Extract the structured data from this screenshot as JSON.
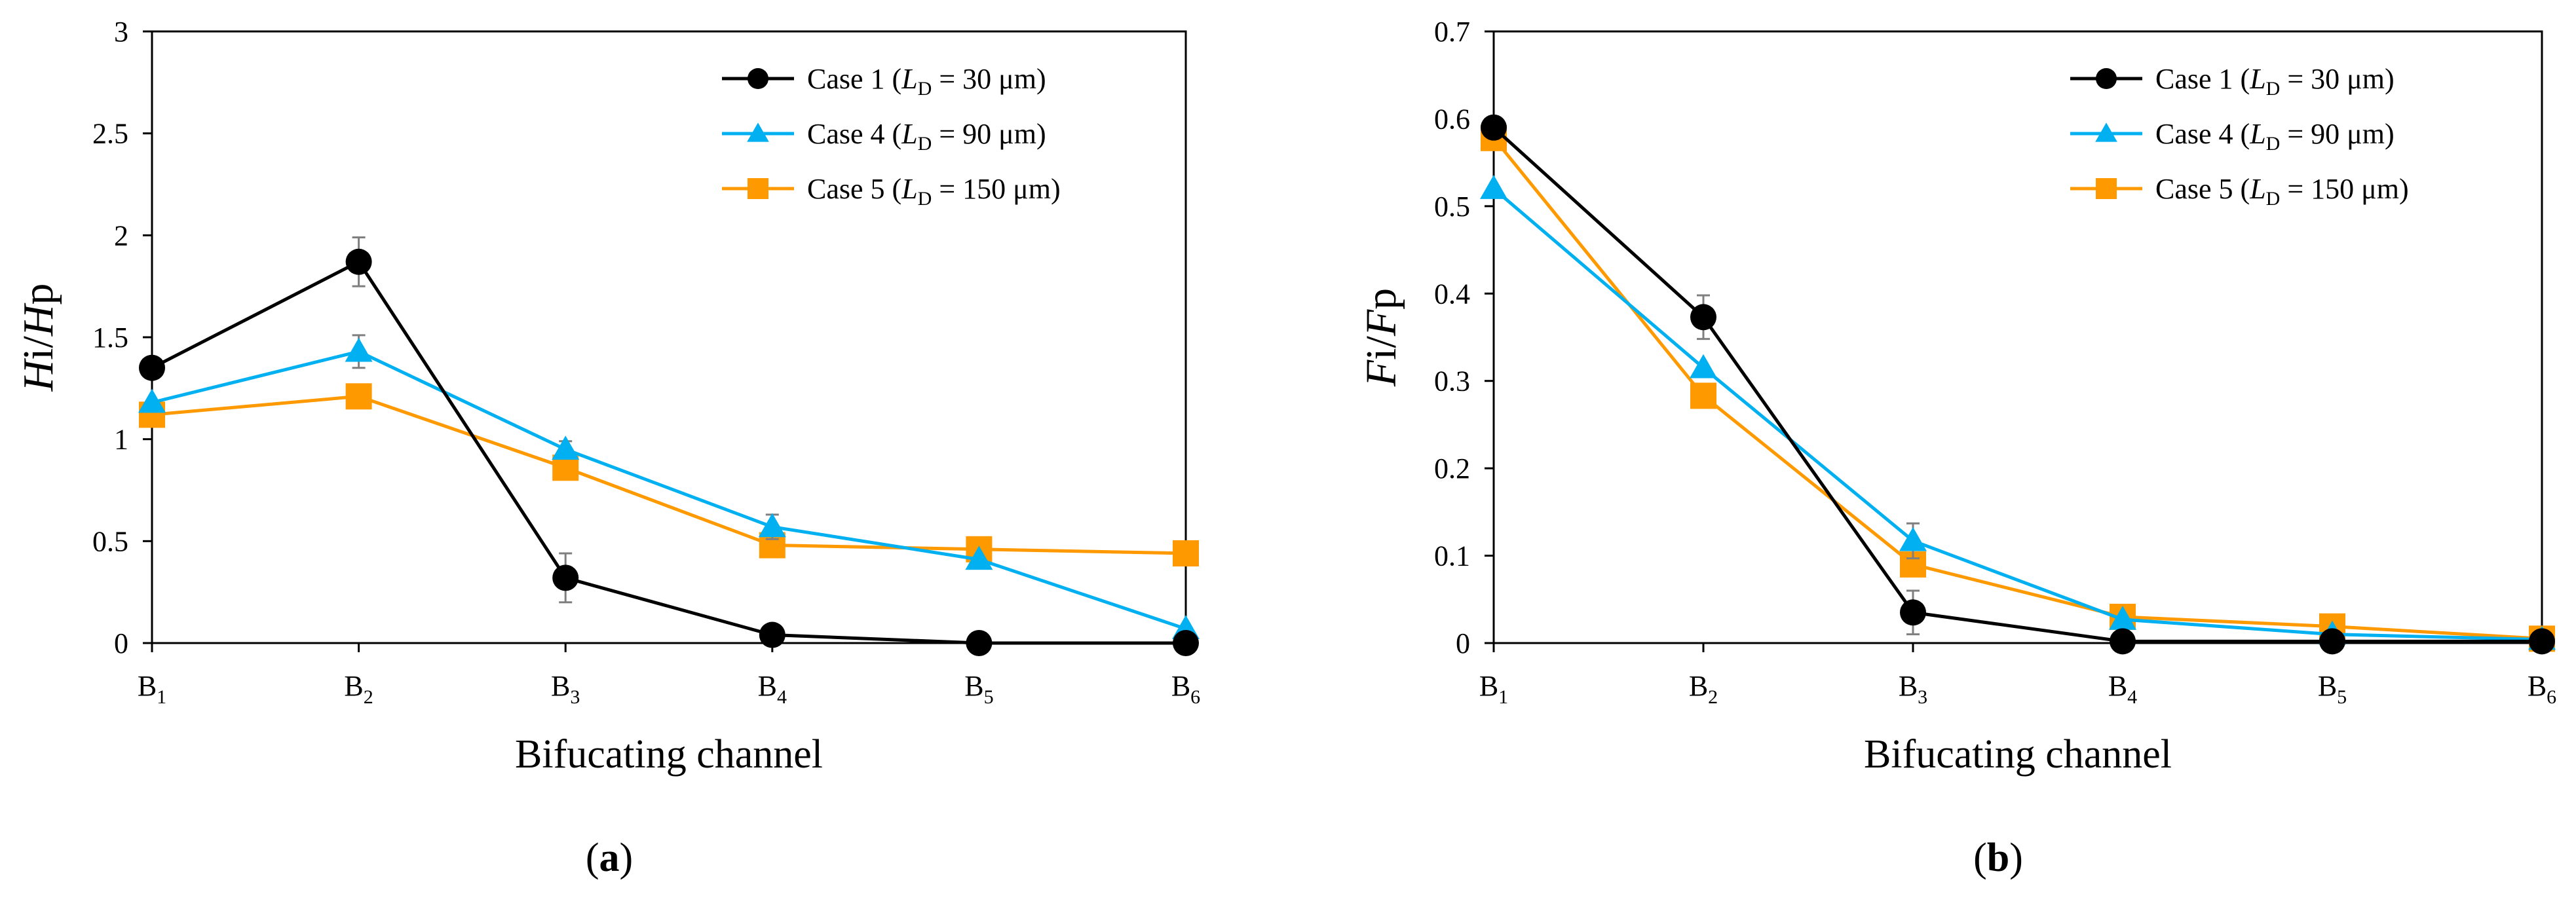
{
  "chart_data": [
    {
      "type": "line",
      "panel_label": "(a)",
      "panel_letter": "a",
      "ylabel_italic": "H",
      "ylabel_sub": "i",
      "ylabel_slash": "/",
      "ylabel_italic2": "H",
      "ylabel_sub2": "p",
      "xlabel": "Bifucating channel",
      "ylim": [
        0,
        3
      ],
      "yticks": [
        0,
        0.5,
        1,
        1.5,
        2,
        2.5,
        3
      ],
      "ytick_labels": [
        "0",
        "0.5",
        "1",
        "1.5",
        "2",
        "2.5",
        "3"
      ],
      "categories": [
        {
          "base": "B",
          "sub": "1"
        },
        {
          "base": "B",
          "sub": "2"
        },
        {
          "base": "B",
          "sub": "3"
        },
        {
          "base": "B",
          "sub": "4"
        },
        {
          "base": "B",
          "sub": "5"
        },
        {
          "base": "B",
          "sub": "6"
        }
      ],
      "legend_position": "top-right",
      "series": [
        {
          "name": "Case 1",
          "ld": "30 μm",
          "color": "#000000",
          "marker": "circle",
          "values": [
            1.35,
            1.87,
            0.32,
            0.04,
            0.0,
            0.0
          ],
          "errors": [
            0.0,
            0.12,
            0.12,
            0.0,
            0.0,
            0.0
          ]
        },
        {
          "name": "Case 4",
          "ld": "90 μm",
          "color": "#00b0f0",
          "marker": "triangle",
          "values": [
            1.18,
            1.43,
            0.95,
            0.57,
            0.41,
            0.07
          ],
          "errors": [
            0.0,
            0.08,
            0.04,
            0.06,
            0.0,
            0.0
          ]
        },
        {
          "name": "Case 5",
          "ld": "150 μm",
          "color": "#ff9900",
          "marker": "square",
          "values": [
            1.12,
            1.21,
            0.86,
            0.48,
            0.46,
            0.44
          ],
          "errors": [
            0.0,
            0.0,
            0.0,
            0.0,
            0.0,
            0.0
          ]
        }
      ]
    },
    {
      "type": "line",
      "panel_label": "(b)",
      "panel_letter": "b",
      "ylabel_italic": "F",
      "ylabel_sub": "i",
      "ylabel_slash": "/",
      "ylabel_italic2": "F",
      "ylabel_sub2": "p",
      "xlabel": "Bifucating channel",
      "ylim": [
        0,
        0.7
      ],
      "yticks": [
        0,
        0.1,
        0.2,
        0.3,
        0.4,
        0.5,
        0.6,
        0.7
      ],
      "ytick_labels": [
        "0",
        "0.1",
        "0.2",
        "0.3",
        "0.4",
        "0.5",
        "0.6",
        "0.7"
      ],
      "categories": [
        {
          "base": "B",
          "sub": "1"
        },
        {
          "base": "B",
          "sub": "2"
        },
        {
          "base": "B",
          "sub": "3"
        },
        {
          "base": "B",
          "sub": "4"
        },
        {
          "base": "B",
          "sub": "5"
        },
        {
          "base": "B",
          "sub": "6"
        }
      ],
      "legend_position": "top-right",
      "series": [
        {
          "name": "Case 1",
          "ld": "30 μm",
          "color": "#000000",
          "marker": "circle",
          "values": [
            0.59,
            0.373,
            0.035,
            0.002,
            0.002,
            0.002
          ],
          "errors": [
            0.0,
            0.025,
            0.025,
            0.0,
            0.0,
            0.0
          ]
        },
        {
          "name": "Case 4",
          "ld": "90 μm",
          "color": "#00b0f0",
          "marker": "triangle",
          "values": [
            0.52,
            0.315,
            0.117,
            0.027,
            0.01,
            0.004
          ],
          "errors": [
            0.0,
            0.0,
            0.02,
            0.0,
            0.0,
            0.0
          ]
        },
        {
          "name": "Case 5",
          "ld": "150 μm",
          "color": "#ff9900",
          "marker": "square",
          "values": [
            0.578,
            0.283,
            0.09,
            0.03,
            0.019,
            0.005
          ],
          "errors": [
            0.0,
            0.0,
            0.0,
            0.0,
            0.0,
            0.0
          ]
        }
      ]
    }
  ]
}
